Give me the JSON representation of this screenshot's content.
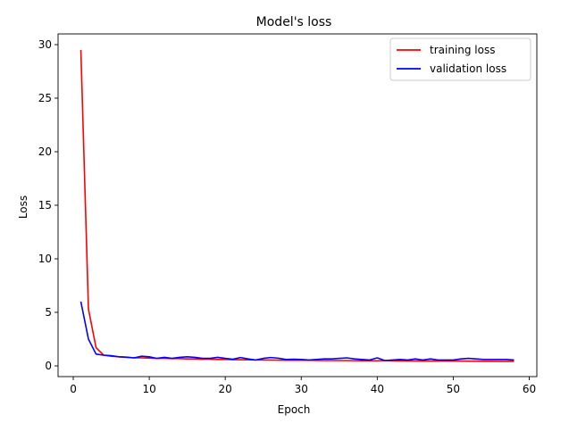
{
  "chart_data": {
    "type": "line",
    "title": "Model's loss",
    "xlabel": "Epoch",
    "ylabel": "Loss",
    "xlim": [
      -2,
      61
    ],
    "ylim": [
      -1,
      31
    ],
    "xticks": [
      0,
      10,
      20,
      30,
      40,
      50,
      60
    ],
    "yticks": [
      0,
      5,
      10,
      15,
      20,
      25,
      30
    ],
    "grid": false,
    "legend_position": "top-right",
    "series": [
      {
        "name": "training loss",
        "color": "#ff0000",
        "x": [
          1,
          2,
          3,
          4,
          5,
          6,
          7,
          8,
          9,
          10,
          11,
          12,
          13,
          14,
          15,
          16,
          17,
          18,
          19,
          20,
          21,
          22,
          23,
          24,
          25,
          26,
          27,
          28,
          29,
          30,
          31,
          32,
          33,
          34,
          35,
          36,
          37,
          38,
          39,
          40,
          41,
          42,
          43,
          44,
          45,
          46,
          47,
          48,
          49,
          50,
          51,
          52,
          53,
          54,
          55,
          56,
          57,
          58
        ],
        "y": [
          29.5,
          5.3,
          1.7,
          1.0,
          0.9,
          0.85,
          0.8,
          0.75,
          0.75,
          0.72,
          0.7,
          0.7,
          0.68,
          0.68,
          0.65,
          0.65,
          0.62,
          0.62,
          0.6,
          0.6,
          0.58,
          0.58,
          0.57,
          0.56,
          0.55,
          0.55,
          0.54,
          0.53,
          0.52,
          0.52,
          0.52,
          0.51,
          0.5,
          0.5,
          0.5,
          0.5,
          0.49,
          0.48,
          0.48,
          0.48,
          0.5,
          0.47,
          0.47,
          0.46,
          0.46,
          0.45,
          0.45,
          0.45,
          0.45,
          0.45,
          0.45,
          0.44,
          0.44,
          0.43,
          0.43,
          0.42,
          0.42,
          0.42
        ]
      },
      {
        "name": "validation loss",
        "color": "#0000ff",
        "x": [
          1,
          2,
          3,
          4,
          5,
          6,
          7,
          8,
          9,
          10,
          11,
          12,
          13,
          14,
          15,
          16,
          17,
          18,
          19,
          20,
          21,
          22,
          23,
          24,
          25,
          26,
          27,
          28,
          29,
          30,
          31,
          32,
          33,
          34,
          35,
          36,
          37,
          38,
          39,
          40,
          41,
          42,
          43,
          44,
          45,
          46,
          47,
          48,
          49,
          50,
          51,
          52,
          53,
          54,
          55,
          56,
          57,
          58
        ],
        "y": [
          6.0,
          2.5,
          1.1,
          1.0,
          0.95,
          0.85,
          0.82,
          0.75,
          0.9,
          0.85,
          0.7,
          0.8,
          0.7,
          0.8,
          0.85,
          0.8,
          0.7,
          0.7,
          0.8,
          0.7,
          0.62,
          0.78,
          0.65,
          0.55,
          0.7,
          0.78,
          0.72,
          0.6,
          0.62,
          0.6,
          0.55,
          0.6,
          0.65,
          0.65,
          0.7,
          0.75,
          0.65,
          0.6,
          0.55,
          0.75,
          0.5,
          0.55,
          0.6,
          0.55,
          0.65,
          0.55,
          0.65,
          0.55,
          0.55,
          0.55,
          0.65,
          0.7,
          0.65,
          0.6,
          0.6,
          0.6,
          0.6,
          0.55
        ]
      }
    ]
  }
}
